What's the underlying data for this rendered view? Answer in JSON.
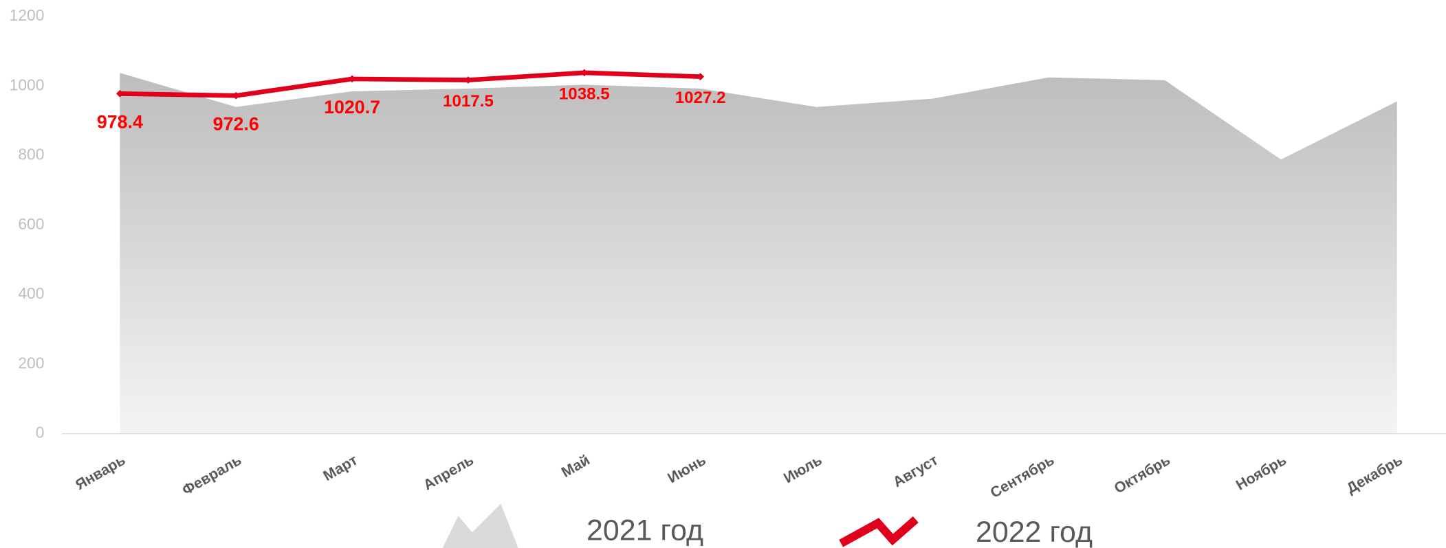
{
  "chart_data": {
    "type": "area-line",
    "categories": [
      "Январь",
      "Февраль",
      "Март",
      "Апрель",
      "Май",
      "Июнь",
      "Июль",
      "Август",
      "Сентябрь",
      "Октябрь",
      "Ноябрь",
      "Декабрь"
    ],
    "series": [
      {
        "name": "2021 год",
        "type": "area",
        "color": "#c0c0c0",
        "values": [
          1038,
          940,
          985,
          993,
          1004,
          993,
          940,
          964,
          1025,
          1017,
          789,
          956
        ]
      },
      {
        "name": "2022 год",
        "type": "line",
        "color": "#e0001b",
        "values": [
          978.4,
          972.6,
          1020.7,
          1017.5,
          1038.5,
          1027.2,
          null,
          null,
          null,
          null,
          null,
          null
        ]
      }
    ],
    "ylim": [
      0,
      1200
    ],
    "yticks": [
      0,
      200,
      400,
      600,
      800,
      1000,
      1200
    ],
    "grid": false,
    "legend": "bottom"
  }
}
